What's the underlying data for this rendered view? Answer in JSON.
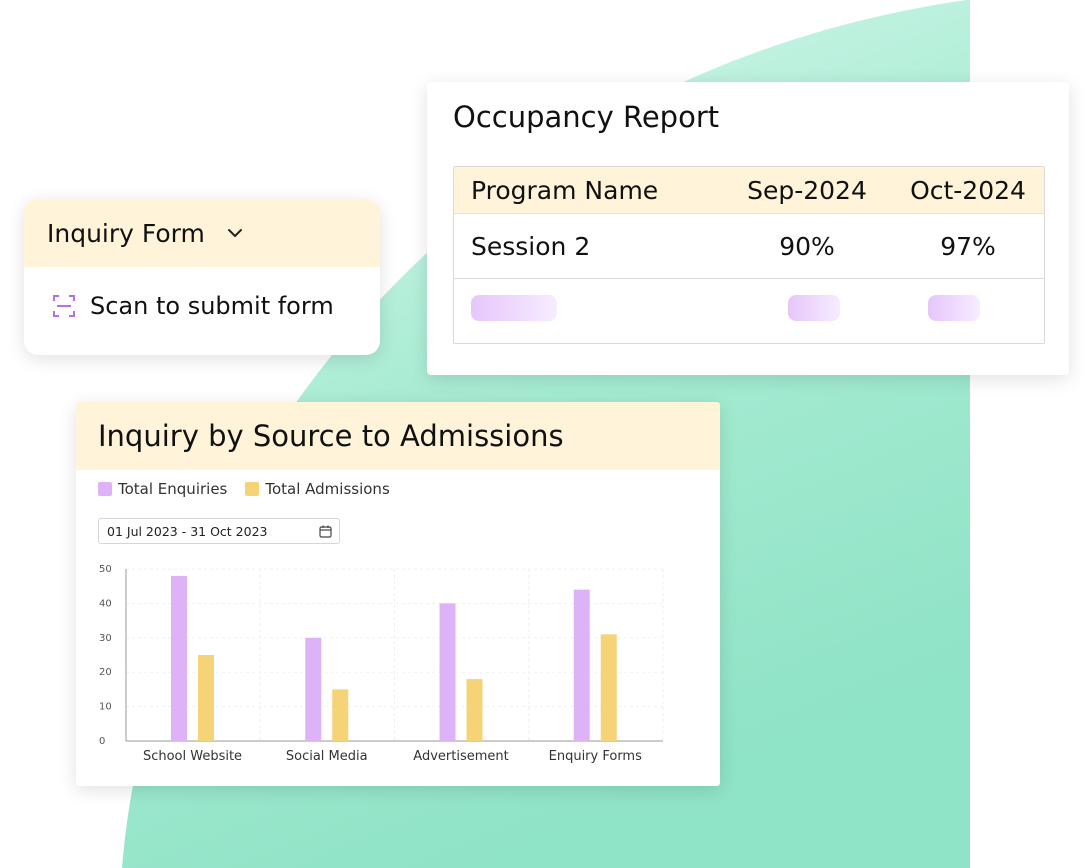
{
  "colors": {
    "accent_bg": "#fff4d9",
    "enquiries": "#deb2f7",
    "admissions": "#f5d376",
    "blob": "#8fe3c6"
  },
  "inquiry_card": {
    "title": "Inquiry Form",
    "dropdown_icon": "chevron-down-icon",
    "action_icon": "scan-icon",
    "action_label": "Scan to submit form"
  },
  "occupancy": {
    "title": "Occupancy Report",
    "headers": [
      "Program Name",
      "Sep-2024",
      "Oct-2024"
    ],
    "rows": [
      [
        "Session 2",
        "90%",
        "97%"
      ]
    ]
  },
  "admissions_chart": {
    "title": "Inquiry by Source to Admissions",
    "legend": [
      "Total Enquiries",
      "Total Admissions"
    ],
    "date_range": "01 Jul 2023 - 31 Oct 2023",
    "date_icon": "calendar-icon"
  },
  "chart_data": {
    "type": "bar",
    "categories": [
      "School Website",
      "Social Media",
      "Advertisement",
      "Enquiry Forms"
    ],
    "series": [
      {
        "name": "Total Enquiries",
        "values": [
          48,
          30,
          40,
          44
        ]
      },
      {
        "name": "Total Admissions",
        "values": [
          25,
          15,
          18,
          31
        ]
      }
    ],
    "ylim": [
      0,
      50
    ],
    "yticks": [
      0,
      10,
      20,
      30,
      40,
      50
    ],
    "grid": true,
    "legend_position": "top-left"
  }
}
